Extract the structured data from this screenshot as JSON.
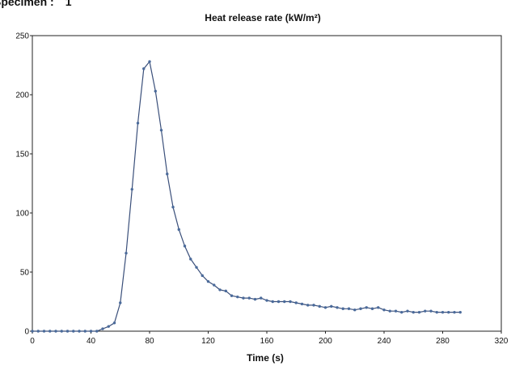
{
  "header": {
    "specimen_label": "Specimen :",
    "specimen_value": "1"
  },
  "chart_data": {
    "type": "line",
    "title": "Heat release rate (kW/m²)",
    "xlabel": "Time (s)",
    "ylabel": "",
    "xlim": [
      0,
      320
    ],
    "ylim": [
      0,
      250
    ],
    "x_ticks": [
      0,
      40,
      80,
      120,
      160,
      200,
      240,
      280,
      320
    ],
    "y_ticks": [
      0,
      50,
      100,
      150,
      200,
      250
    ],
    "grid": false,
    "legend": "none",
    "line_color": "#3a4f7a",
    "marker_color": "#4a6a9a",
    "series": [
      {
        "x": [
          0,
          4,
          8,
          12,
          16,
          20,
          24,
          28,
          32,
          36,
          40,
          44,
          48,
          52,
          56,
          60,
          64,
          68,
          72,
          76,
          80,
          84,
          88,
          92,
          96,
          100,
          104,
          108,
          112,
          116,
          120,
          124,
          128,
          132,
          136,
          140,
          144,
          148,
          152,
          156,
          160,
          164,
          168,
          172,
          176,
          180,
          184,
          188,
          192,
          196,
          200,
          204,
          208,
          212,
          216,
          220,
          224,
          228,
          232,
          236,
          240,
          244,
          248,
          252,
          256,
          260,
          264,
          268,
          272,
          276,
          280,
          284,
          288,
          292
        ],
        "y": [
          0,
          0,
          0,
          0,
          0,
          0,
          0,
          0,
          0,
          0,
          0,
          0,
          2,
          4,
          7,
          24,
          66,
          120,
          176,
          222,
          228,
          203,
          170,
          133,
          105,
          86,
          72,
          61,
          54,
          47,
          42,
          39,
          35,
          34,
          30,
          29,
          28,
          28,
          27,
          28,
          26,
          25,
          25,
          25,
          25,
          24,
          23,
          22,
          22,
          21,
          20,
          21,
          20,
          19,
          19,
          18,
          19,
          20,
          19,
          20,
          18,
          17,
          17,
          16,
          17,
          16,
          16,
          17,
          17,
          16,
          16,
          16,
          16,
          16
        ]
      }
    ]
  }
}
